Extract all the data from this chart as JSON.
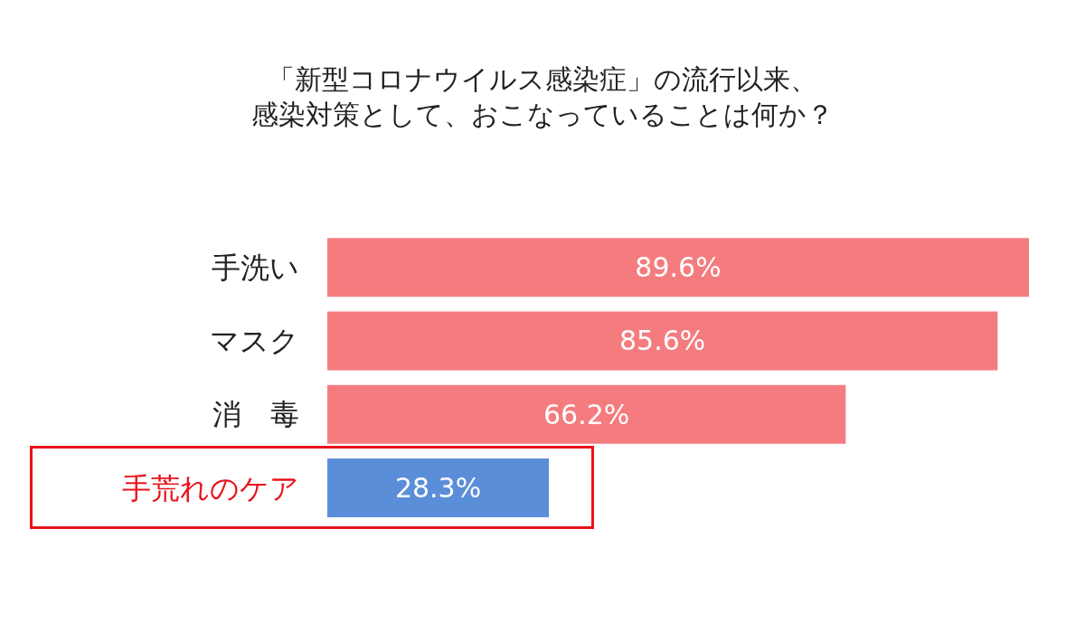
{
  "chart_data": {
    "type": "bar",
    "orientation": "horizontal",
    "title": "「新型コロナウイルス感染症」の流行以来、感染対策として、おこなっていることは何か？",
    "categories": [
      "手洗い",
      "マスク",
      "消　毒",
      "手荒れのケア"
    ],
    "values": [
      89.6,
      85.6,
      66.2,
      28.3
    ],
    "colors": [
      "#f47c7f",
      "#f47c7f",
      "#f47c7f",
      "#5b8ed8"
    ],
    "value_labels": [
      "89.6%",
      "85.6%",
      "66.2%",
      "28.3%"
    ],
    "grid": false
  }
}
